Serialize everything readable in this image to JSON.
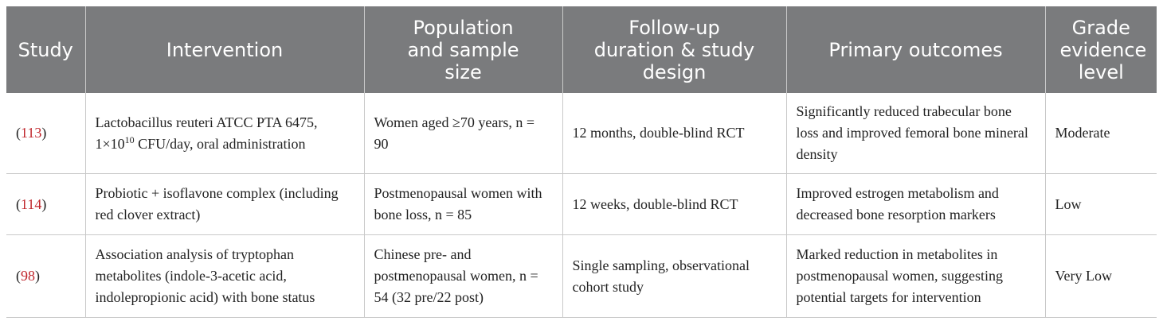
{
  "headers": [
    "Study",
    "Intervention",
    "Population and sample size",
    "Follow-up duration & study design",
    "Primary outcomes",
    "Grade evidence level"
  ],
  "rows": [
    {
      "ref": "113",
      "intervention_main": "Lactobacillus reuteri ATCC PTA 6475, 1×10",
      "intervention_sup": "10",
      "intervention_tail": " CFU/day, oral administration",
      "population": "Women aged ≥70 years, n = 90",
      "design": "12 months, double-blind RCT",
      "outcomes": "Significantly reduced trabecular bone loss and improved femoral bone mineral density",
      "grade": "Moderate"
    },
    {
      "ref": "114",
      "intervention": "Probiotic + isoflavone complex (including red clover extract)",
      "population": "Postmenopausal women with bone loss, n = 85",
      "design": "12 weeks, double-blind RCT",
      "outcomes": "Improved estrogen metabolism and decreased bone resorption markers",
      "grade": "Low"
    },
    {
      "ref": "98",
      "intervention": "Association analysis of tryptophan metabolites (indole-3-acetic acid, indolepropionic acid) with bone status",
      "population": "Chinese pre- and postmenopausal women, n = 54 (32 pre/22 post)",
      "design": "Single sampling, observational cohort study",
      "outcomes": "Marked reduction in metabolites in postmenopausal women, suggesting potential targets for intervention",
      "grade": "Very Low"
    }
  ]
}
